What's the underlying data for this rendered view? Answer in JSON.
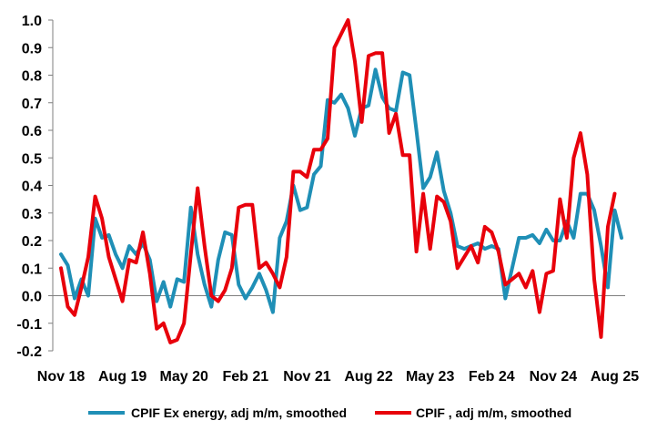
{
  "chart_data": {
    "type": "line",
    "title": "",
    "xlabel": "",
    "ylabel": "",
    "ylim": [
      -0.2,
      1.0
    ],
    "y_ticks": [
      1.0,
      0.9,
      0.8,
      0.7,
      0.6,
      0.5,
      0.4,
      0.3,
      0.2,
      0.1,
      0.0,
      -0.1,
      -0.2
    ],
    "y_tick_labels": [
      "1.0",
      "0.9",
      "0.8",
      "0.7",
      "0.6",
      "0.5",
      "0.4",
      "0.3",
      "0.2",
      "0.1",
      "0.0",
      "-0.1",
      "-0.2"
    ],
    "x_tick_labels": [
      "Nov 18",
      "Aug 19",
      "May 20",
      "Feb 21",
      "Nov 21",
      "Aug 22",
      "May 23",
      "Feb 24",
      "Nov 24",
      "Aug 25"
    ],
    "x_tick_month_index": [
      0,
      9,
      18,
      27,
      36,
      45,
      54,
      63,
      72,
      81
    ],
    "grid": false,
    "legend_position": "bottom",
    "series": [
      {
        "name": "CPIF Ex energy, adj m/m, smoothed",
        "color": "#1f8fb6",
        "values": [
          0.15,
          0.11,
          -0.01,
          0.06,
          0.0,
          0.28,
          0.21,
          0.22,
          0.15,
          0.1,
          0.18,
          0.15,
          0.19,
          0.13,
          -0.02,
          0.05,
          -0.04,
          0.06,
          0.05,
          0.32,
          0.15,
          0.04,
          -0.04,
          0.13,
          0.23,
          0.22,
          0.04,
          -0.01,
          0.03,
          0.08,
          0.02,
          -0.06,
          0.21,
          0.27,
          0.4,
          0.31,
          0.32,
          0.44,
          0.47,
          0.71,
          0.7,
          0.73,
          0.68,
          0.58,
          0.68,
          0.69,
          0.82,
          0.72,
          0.68,
          0.67,
          0.81,
          0.8,
          0.6,
          0.39,
          0.43,
          0.52,
          0.38,
          0.3,
          0.18,
          0.17,
          0.18,
          0.19,
          0.17,
          0.18,
          0.17,
          -0.01,
          0.1,
          0.21,
          0.21,
          0.22,
          0.19,
          0.24,
          0.2,
          0.2,
          0.27,
          0.21,
          0.37,
          0.37,
          0.31,
          0.18,
          0.03,
          0.31,
          0.21
        ]
      },
      {
        "name": "CPIF , adj m/m, smoothed",
        "color": "#e8000b",
        "values": [
          0.1,
          -0.04,
          -0.07,
          0.03,
          0.14,
          0.36,
          0.28,
          0.14,
          0.06,
          -0.02,
          0.13,
          0.12,
          0.23,
          0.08,
          -0.12,
          -0.1,
          -0.17,
          -0.16,
          -0.1,
          0.15,
          0.39,
          0.18,
          0.0,
          -0.02,
          0.02,
          0.1,
          0.32,
          0.33,
          0.33,
          0.1,
          0.12,
          0.08,
          0.03,
          0.14,
          0.45,
          0.45,
          0.43,
          0.53,
          0.53,
          0.57,
          0.9,
          0.95,
          1.0,
          0.85,
          0.63,
          0.87,
          0.88,
          0.88,
          0.59,
          0.66,
          0.51,
          0.51,
          0.16,
          0.37,
          0.17,
          0.36,
          0.34,
          0.27,
          0.1,
          0.14,
          0.18,
          0.12,
          0.25,
          0.23,
          0.16,
          0.04,
          0.06,
          0.08,
          0.03,
          0.09,
          -0.06,
          0.08,
          0.09,
          0.35,
          0.21,
          0.5,
          0.59,
          0.44,
          0.06,
          -0.15,
          0.25,
          0.37
        ]
      }
    ]
  }
}
